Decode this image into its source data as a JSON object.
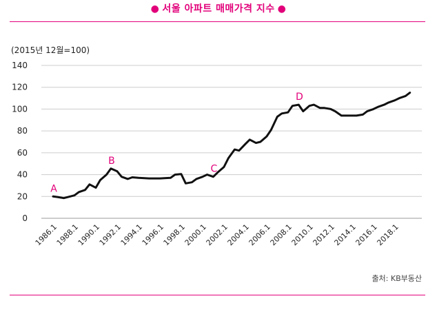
{
  "header": {
    "title": "서울 아파트 매매가격 지수",
    "bullet": "●"
  },
  "chart_data": {
    "type": "line",
    "title": "서울 아파트 매매가격 지수",
    "unit_note": "(2015년 12월=100)",
    "source": "출처: KB부동산",
    "xlabel": "",
    "ylabel": "",
    "x_range": [
      "1986.1",
      "2019.6"
    ],
    "ylim": [
      0,
      140
    ],
    "yticks": [
      0,
      20,
      40,
      60,
      80,
      100,
      120,
      140
    ],
    "xtick_labels": [
      "1986.1",
      "1988.1",
      "1990.1",
      "1992.1",
      "1994.1",
      "1996.1",
      "1998.1",
      "2000.1",
      "2002.1",
      "2004.1",
      "2006.1",
      "2008.1",
      "2010.1",
      "2012.1",
      "2014.1",
      "2016.1",
      "2018.1"
    ],
    "grid": "horizontal",
    "colors": {
      "line": "#111111",
      "accent": "#e2007a",
      "grid": "#cccccc"
    },
    "series": [
      {
        "x": [
          "1986.1",
          "1986.6",
          "1987.1",
          "1987.6",
          "1988.1",
          "1988.6",
          "1989.1",
          "1989.6",
          "1990.1",
          "1990.6",
          "1991.1",
          "1991.6",
          "1992.1",
          "1992.6",
          "1993.1",
          "1993.6",
          "1994.1",
          "1995.1",
          "1996.1",
          "1997.1",
          "1997.6",
          "1998.1",
          "1998.6",
          "1999.1",
          "1999.6",
          "2000.1",
          "2000.6",
          "2001.1",
          "2001.6",
          "2002.1",
          "2002.6",
          "2003.1",
          "2003.6",
          "2004.1",
          "2004.6",
          "2005.1",
          "2005.6",
          "2006.1",
          "2006.6",
          "2007.1",
          "2007.6",
          "2008.1",
          "2008.6",
          "2009.1",
          "2009.6",
          "2010.1",
          "2010.6",
          "2011.1",
          "2011.6",
          "2012.1",
          "2012.6",
          "2013.1",
          "2013.6",
          "2014.1",
          "2014.6",
          "2015.1",
          "2015.6",
          "2016.1",
          "2016.6",
          "2017.1",
          "2017.6",
          "2018.1",
          "2018.6",
          "2019.1",
          "2019.6"
        ],
        "values": [
          20,
          19.5,
          18.5,
          19.5,
          21,
          24,
          26,
          31,
          28,
          35,
          40,
          45.5,
          43,
          38,
          36,
          37.5,
          37,
          36.5,
          36.5,
          37,
          40,
          40.5,
          32,
          33,
          36,
          38,
          40,
          38,
          42,
          47,
          55,
          63,
          62,
          68,
          72,
          69,
          70,
          75,
          81,
          93,
          96,
          97,
          103,
          104,
          98,
          103,
          104,
          101,
          101,
          100,
          98,
          94,
          94,
          94,
          94,
          95,
          98,
          100,
          102,
          104,
          106,
          108,
          110,
          112,
          115
        ]
      }
    ],
    "annotations": [
      {
        "label": "A",
        "x": "1986.1",
        "y": 20
      },
      {
        "label": "B",
        "x": "1991.6",
        "y": 45.5
      },
      {
        "label": "C",
        "x": "2001.1",
        "y": 38
      },
      {
        "label": "D",
        "x": "2009.1",
        "y": 104
      }
    ]
  }
}
